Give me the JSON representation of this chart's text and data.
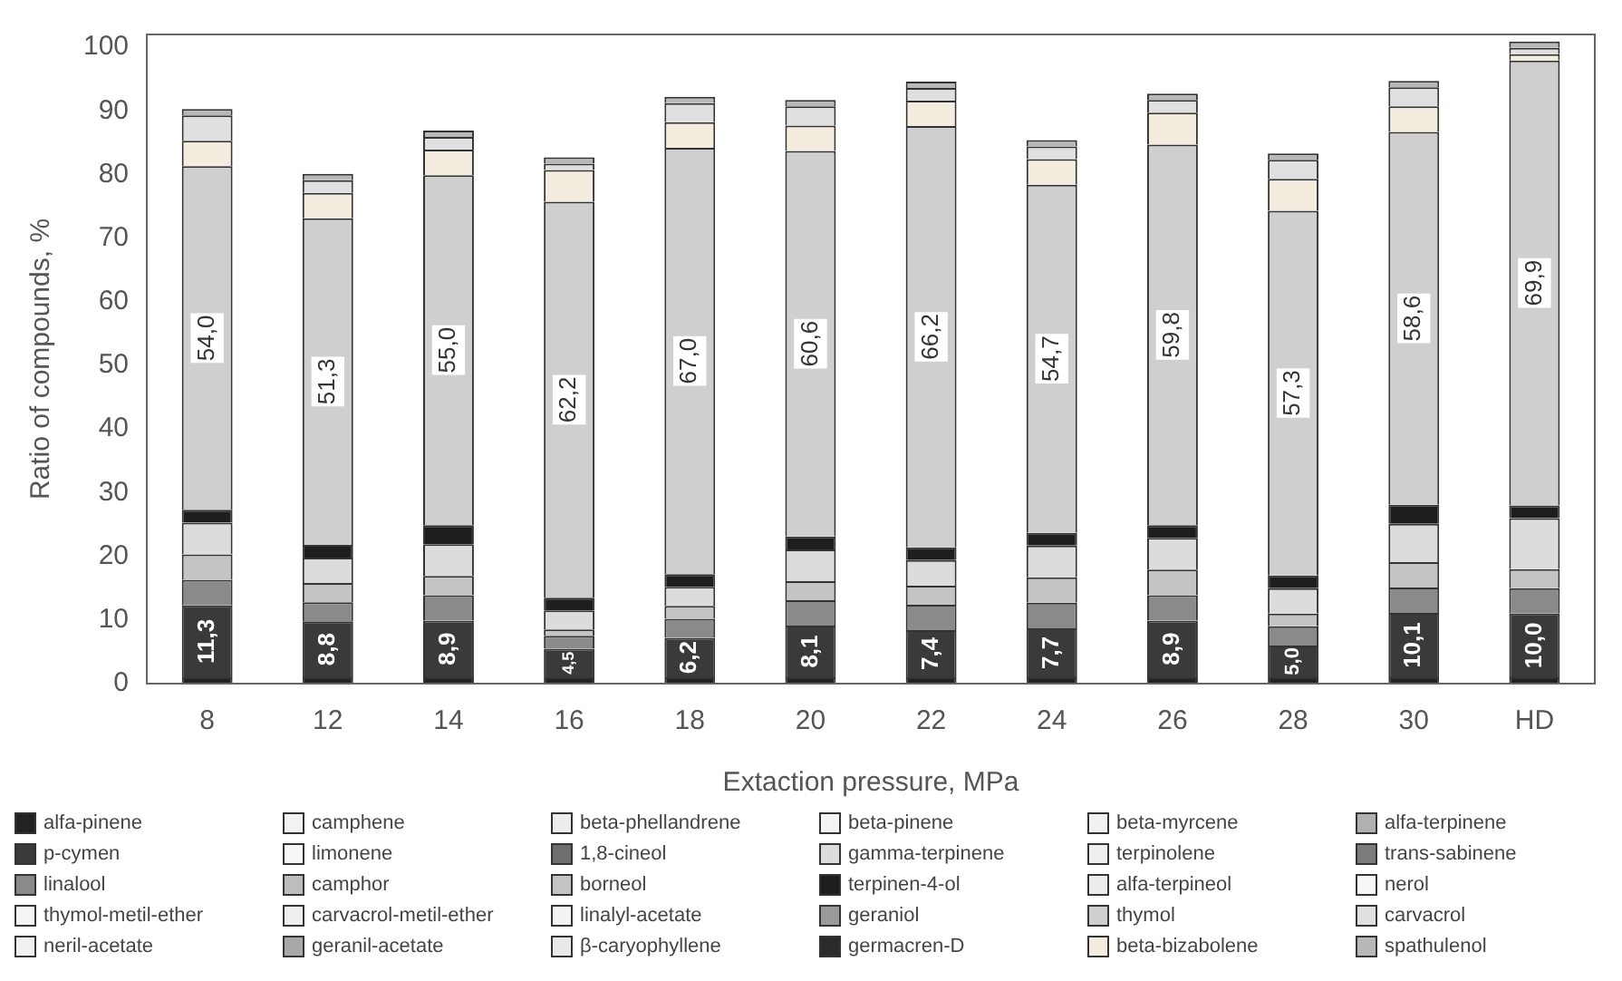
{
  "chart_data": {
    "type": "bar",
    "stacked": true,
    "xlabel": "Extaction pressure, MPa",
    "ylabel": "Ratio of compounds, %",
    "legend": "bottom",
    "grid": false,
    "categories": [
      "8",
      "12",
      "14",
      "16",
      "18",
      "20",
      "22",
      "24",
      "26",
      "28",
      "30",
      "HD"
    ],
    "ylim": [
      0,
      102
    ],
    "yticks": [
      0,
      10,
      20,
      30,
      40,
      50,
      60,
      70,
      80,
      90,
      100
    ],
    "series": [
      {
        "name": "alfa-pinene",
        "color": "#222222",
        "values": [
          1,
          1,
          1,
          1,
          1,
          1,
          1,
          1,
          1,
          1,
          1,
          1
        ]
      },
      {
        "name": "p-cymen",
        "color": "#3a3a3a",
        "values": [
          11.3,
          8.8,
          8.9,
          4.5,
          6.2,
          8.1,
          7.4,
          7.7,
          8.9,
          5.0,
          10.1,
          10.0
        ],
        "value_labels": [
          "11,3",
          "8,8",
          "8,9",
          "4,5",
          "6,2",
          "8,1",
          "7,4",
          "7,7",
          "8,9",
          "5,0",
          "10,1",
          "10,0"
        ]
      },
      {
        "name": "linalool",
        "color": "#8a8a8a",
        "values": [
          4,
          3,
          4,
          2,
          3,
          4,
          4,
          4,
          4,
          3,
          4,
          4
        ]
      },
      {
        "name": "thymol-metil-ether",
        "color": "#f4f4f4",
        "values": [
          null,
          null,
          null,
          null,
          null,
          null,
          null,
          null,
          null,
          null,
          null,
          null
        ]
      },
      {
        "name": "neril-acetate",
        "color": "#f0f0f0",
        "values": [
          null,
          null,
          null,
          null,
          null,
          null,
          null,
          null,
          null,
          null,
          null,
          null
        ]
      },
      {
        "name": "camphene",
        "color": "#f2f2f2",
        "values": [
          null,
          null,
          null,
          null,
          null,
          null,
          null,
          null,
          null,
          null,
          null,
          null
        ]
      },
      {
        "name": "limonene",
        "color": "#f6f6f6",
        "values": [
          null,
          null,
          null,
          null,
          null,
          null,
          null,
          null,
          null,
          null,
          null,
          null
        ]
      },
      {
        "name": "camphor",
        "color": "#bdbdbd",
        "values": [
          null,
          null,
          null,
          null,
          null,
          null,
          null,
          null,
          null,
          null,
          null,
          null
        ]
      },
      {
        "name": "carvacrol-metil-ether",
        "color": "#eeeeee",
        "values": [
          null,
          null,
          null,
          null,
          null,
          null,
          null,
          null,
          null,
          null,
          null,
          null
        ]
      },
      {
        "name": "geranil-acetate",
        "color": "#a8a8a8",
        "values": [
          null,
          null,
          null,
          null,
          null,
          null,
          null,
          null,
          null,
          null,
          null,
          null
        ]
      },
      {
        "name": "beta-phellandrene",
        "color": "#ececec",
        "values": [
          null,
          null,
          null,
          null,
          null,
          null,
          null,
          null,
          null,
          null,
          null,
          null
        ]
      },
      {
        "name": "1,8-cineol",
        "color": "#6e6e6e",
        "values": [
          null,
          null,
          null,
          null,
          null,
          null,
          null,
          null,
          null,
          null,
          null,
          null
        ]
      },
      {
        "name": "borneol",
        "color": "#c4c4c4",
        "values": [
          4,
          3,
          3,
          1,
          2,
          3,
          3,
          4,
          4,
          2,
          4,
          3
        ]
      },
      {
        "name": "linalyl-acetate",
        "color": "#f3f3f3",
        "values": [
          null,
          null,
          null,
          null,
          null,
          null,
          null,
          null,
          null,
          null,
          null,
          null
        ]
      },
      {
        "name": "β-caryophyllene",
        "color": "#e8e8e8",
        "values": [
          null,
          null,
          null,
          null,
          null,
          null,
          null,
          null,
          null,
          null,
          null,
          null
        ]
      },
      {
        "name": "beta-pinene",
        "color": "#f5f5f5",
        "values": [
          null,
          null,
          null,
          null,
          null,
          null,
          null,
          null,
          null,
          null,
          null,
          null
        ]
      },
      {
        "name": "gamma-terpinene",
        "color": "#dcdcdc",
        "values": [
          5,
          4,
          5,
          3,
          3,
          5,
          4,
          5,
          5,
          4,
          6,
          8
        ]
      },
      {
        "name": "terpinen-4-ol",
        "color": "#1e1e1e",
        "values": [
          2,
          2,
          3,
          2,
          2,
          2,
          2,
          2,
          2,
          2,
          3,
          2
        ]
      },
      {
        "name": "geraniol",
        "color": "#9a9a9a",
        "values": [
          null,
          null,
          null,
          null,
          null,
          null,
          null,
          null,
          null,
          null,
          null,
          null
        ]
      },
      {
        "name": "germacren-D",
        "color": "#2a2a2a",
        "values": [
          null,
          null,
          null,
          null,
          null,
          null,
          null,
          null,
          null,
          null,
          null,
          null
        ]
      },
      {
        "name": "beta-myrcene",
        "color": "#f1f1f1",
        "values": [
          null,
          null,
          null,
          null,
          null,
          null,
          null,
          null,
          null,
          null,
          null,
          null
        ]
      },
      {
        "name": "terpinolene",
        "color": "#efefef",
        "values": [
          null,
          null,
          null,
          null,
          null,
          null,
          null,
          null,
          null,
          null,
          null,
          null
        ]
      },
      {
        "name": "alfa-terpineol",
        "color": "#ededed",
        "values": [
          null,
          null,
          null,
          null,
          null,
          null,
          null,
          null,
          null,
          null,
          null,
          null
        ]
      },
      {
        "name": "thymol",
        "color": "#cfcfcf",
        "values": [
          54.0,
          51.3,
          55.0,
          62.2,
          67.0,
          60.6,
          66.2,
          54.7,
          59.8,
          57.3,
          58.6,
          69.9
        ],
        "value_labels": [
          "54,0",
          "51,3",
          "55,0",
          "62,2",
          "67,0",
          "60,6",
          "66,2",
          "54,7",
          "59,8",
          "57,3",
          "58,6",
          "69,9"
        ]
      },
      {
        "name": "beta-bizabolene",
        "color": "#f3ecdf",
        "values": [
          4,
          4,
          4,
          5,
          4,
          4,
          4,
          4,
          5,
          5,
          4,
          1
        ]
      },
      {
        "name": "alfa-terpinene",
        "color": "#b0b0b0",
        "values": [
          null,
          null,
          null,
          null,
          null,
          null,
          null,
          null,
          null,
          null,
          null,
          null
        ]
      },
      {
        "name": "trans-sabinene",
        "color": "#7c7c7c",
        "values": [
          null,
          null,
          null,
          null,
          null,
          null,
          null,
          null,
          null,
          null,
          null,
          null
        ]
      },
      {
        "name": "nerol",
        "color": "#f7f7f7",
        "values": [
          null,
          null,
          null,
          null,
          null,
          null,
          null,
          null,
          null,
          null,
          null,
          null
        ]
      },
      {
        "name": "carvacrol",
        "color": "#e0e0e0",
        "values": [
          4,
          2,
          2,
          1,
          3,
          3,
          2,
          2,
          2,
          3,
          3,
          1
        ]
      },
      {
        "name": "spathulenol",
        "color": "#b8b8b8",
        "values": [
          1,
          1,
          1,
          1,
          1,
          1,
          1,
          1,
          1,
          1,
          1,
          1
        ]
      }
    ]
  }
}
